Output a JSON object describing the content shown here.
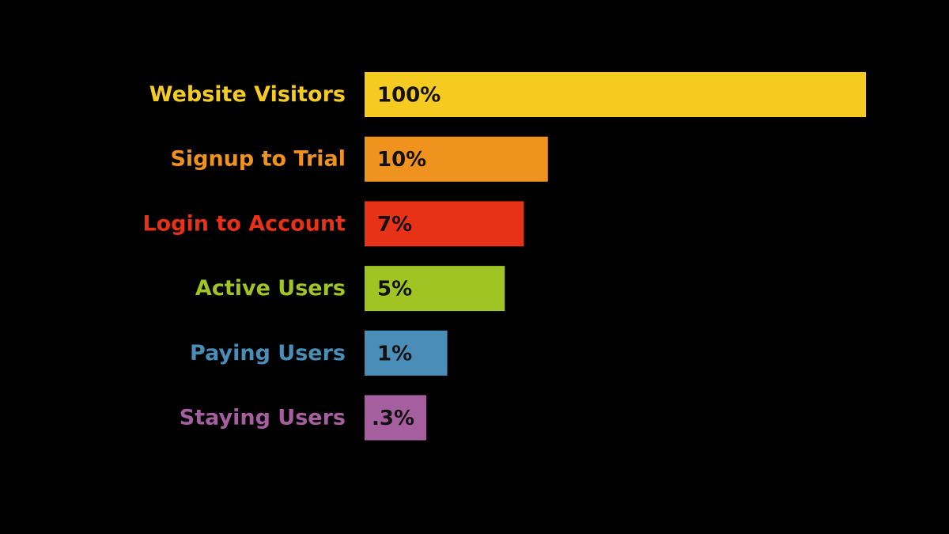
{
  "chart_data": {
    "type": "bar",
    "orientation": "horizontal",
    "categories": [
      "Website Visitors",
      "Signup to Trial",
      "Login to Account",
      "Active Users",
      "Paying Users",
      "Staying Users"
    ],
    "value_labels": [
      "100%",
      "10%",
      "7%",
      "5%",
      "1%",
      ".3%"
    ],
    "values": [
      100,
      10,
      7,
      5,
      1,
      0.3
    ],
    "colors": [
      "#F5CB22",
      "#F0921E",
      "#E83218",
      "#A0C423",
      "#4A8EB8",
      "#A65F9E"
    ],
    "background": "#000000",
    "grid": false,
    "legend": "none",
    "title": "",
    "xlabel": "",
    "ylabel": ""
  }
}
